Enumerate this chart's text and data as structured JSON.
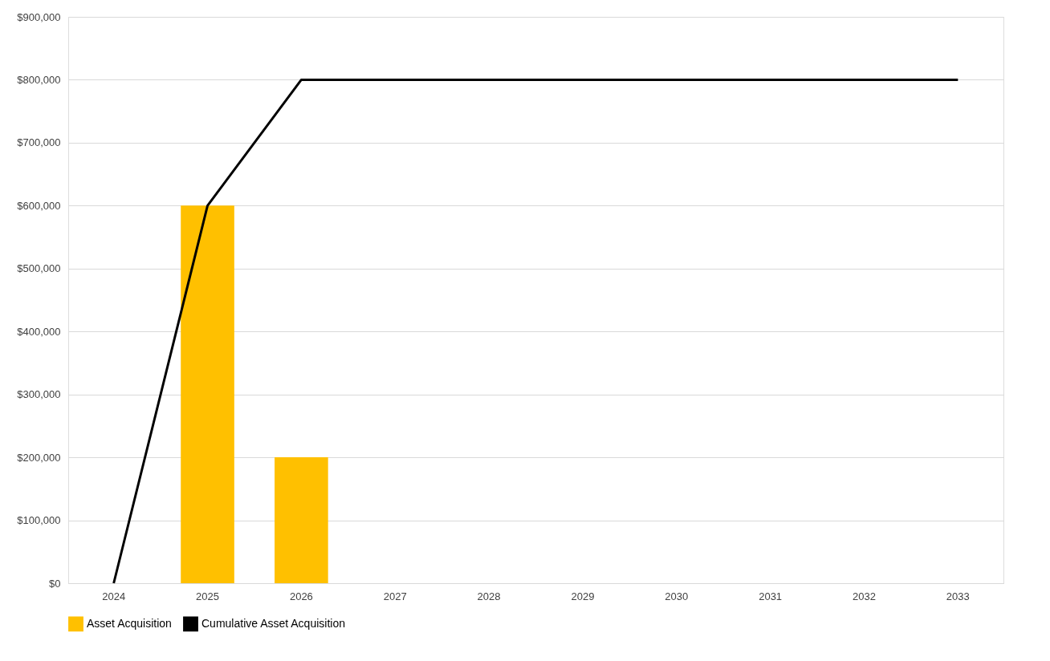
{
  "chart_data": {
    "type": "bar",
    "categories": [
      "2024",
      "2025",
      "2026",
      "2027",
      "2028",
      "2029",
      "2030",
      "2031",
      "2032",
      "2033"
    ],
    "series": [
      {
        "name": "Asset Acquisition",
        "color": "#ffc000",
        "values": [
          0,
          600000,
          200000,
          0,
          0,
          0,
          0,
          0,
          0,
          0
        ]
      },
      {
        "name": "Cumulative Asset Acquisition",
        "type": "line",
        "color": "#000000",
        "values": [
          0,
          600000,
          800000,
          800000,
          800000,
          800000,
          800000,
          800000,
          800000,
          800000
        ]
      }
    ],
    "ylim": [
      0,
      900000
    ],
    "yticks": [
      {
        "value": 0,
        "label": "$0"
      },
      {
        "value": 100000,
        "label": "$100,000"
      },
      {
        "value": 200000,
        "label": "$200,000"
      },
      {
        "value": 300000,
        "label": "$300,000"
      },
      {
        "value": 400000,
        "label": "$400,000"
      },
      {
        "value": 500000,
        "label": "$500,000"
      },
      {
        "value": 600000,
        "label": "$600,000"
      },
      {
        "value": 700000,
        "label": "$700,000"
      },
      {
        "value": 800000,
        "label": "$800,000"
      },
      {
        "value": 900000,
        "label": "$900,000"
      }
    ],
    "grid": "y",
    "legend": "bottom"
  }
}
